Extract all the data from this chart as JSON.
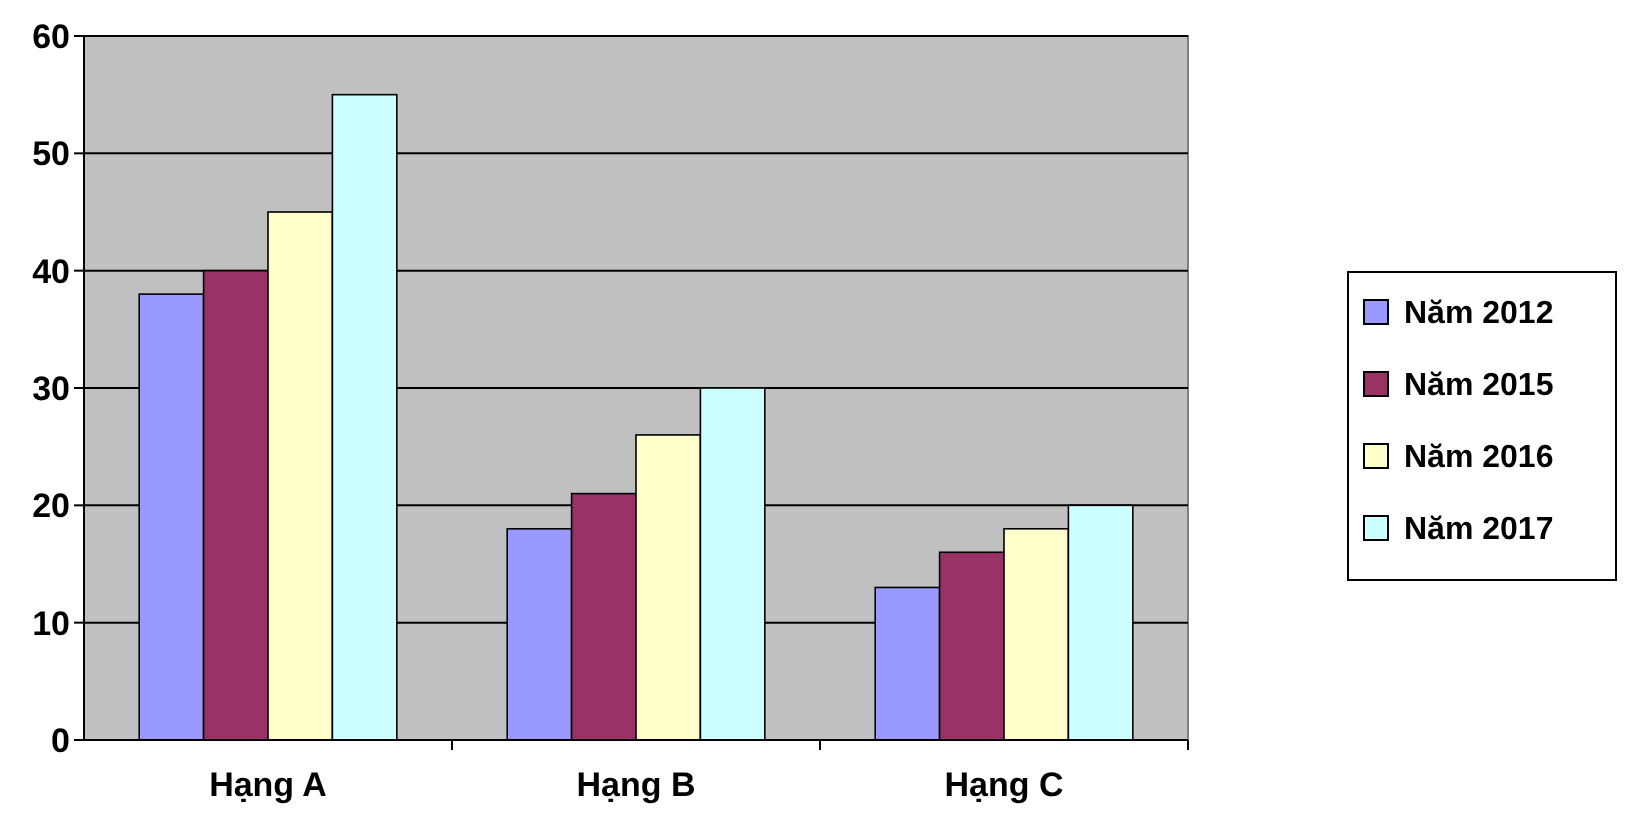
{
  "chart_data": {
    "type": "bar",
    "categories": [
      "Hạng A",
      "Hạng B",
      "Hạng C"
    ],
    "series": [
      {
        "name": "Năm 2012",
        "color": "#9999ff",
        "values": [
          38,
          18,
          13
        ]
      },
      {
        "name": "Năm 2015",
        "color": "#993366",
        "values": [
          40,
          21,
          16
        ]
      },
      {
        "name": "Năm 2016",
        "color": "#ffffcc",
        "values": [
          45,
          26,
          18
        ]
      },
      {
        "name": "Năm 2017",
        "color": "#ccffff",
        "values": [
          55,
          30,
          20
        ]
      }
    ],
    "ylim": [
      0,
      60
    ],
    "yticks": [
      0,
      10,
      20,
      30,
      40,
      50,
      60
    ],
    "grid": "y",
    "legend": "right"
  }
}
